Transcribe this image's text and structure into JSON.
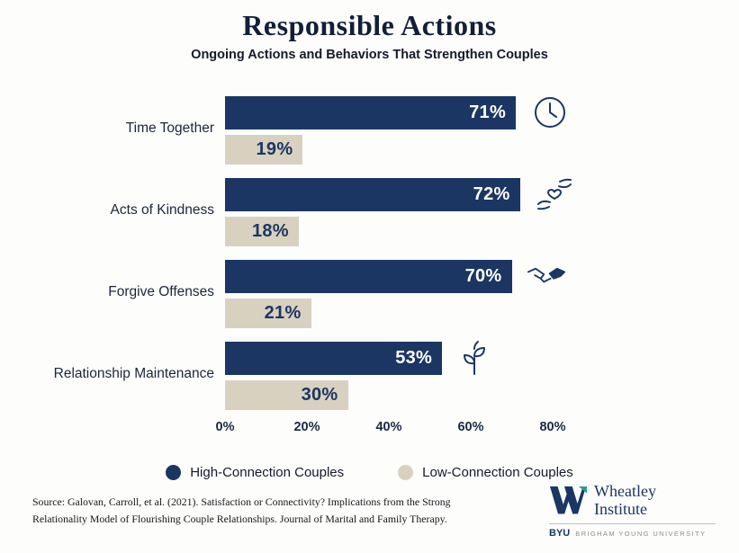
{
  "title": "Responsible Actions",
  "subtitle": "Ongoing Actions and Behaviors That Strengthen Couples",
  "chart_data": {
    "type": "bar",
    "orientation": "horizontal",
    "title": "Responsible Actions",
    "subtitle": "Ongoing Actions and Behaviors That Strengthen Couples",
    "categories": [
      "Time Together",
      "Acts of Kindness",
      "Forgive Offenses",
      "Relationship Maintenance"
    ],
    "series": [
      {
        "name": "High-Connection Couples",
        "color": "#1b3663",
        "text_color": "#ffffff",
        "values": [
          71,
          72,
          70,
          53
        ]
      },
      {
        "name": "Low-Connection Couples",
        "color": "#d9d1c0",
        "text_color": "#1b3663",
        "values": [
          19,
          18,
          21,
          30
        ]
      }
    ],
    "row_icons": [
      "clock-icon",
      "hands-heart-icon",
      "handshake-icon",
      "plant-icon"
    ],
    "x_ticks": [
      "0%",
      "20%",
      "40%",
      "60%",
      "80%"
    ],
    "xlim": [
      0,
      80
    ],
    "value_suffix": "%",
    "grid": false,
    "legend_position": "bottom"
  },
  "footer": {
    "source_line1": "Source: Galovan, Carroll, et al. (2021). Satisfaction or Connectivity? Implications from the Strong",
    "source_line2": "Relationality Model of Flourishing Couple Relationships. Journal of Marital and Family Therapy.",
    "logo": {
      "name_line1": "Wheatley",
      "name_line2": "Institute",
      "byu": "BYU",
      "university": "BRIGHAM YOUNG UNIVERSITY"
    }
  }
}
